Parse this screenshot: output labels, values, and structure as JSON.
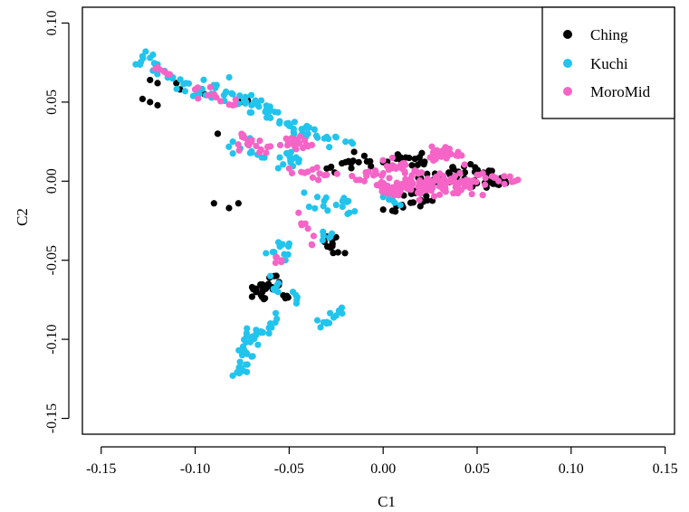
{
  "chart_data": {
    "type": "scatter",
    "xlabel": "C1",
    "ylabel": "C2",
    "xlim": [
      -0.16,
      0.155
    ],
    "ylim": [
      -0.16,
      0.11
    ],
    "x_ticks": [
      -0.15,
      -0.1,
      -0.05,
      0.0,
      0.05,
      0.1,
      0.15
    ],
    "x_tick_labels": [
      "-0.15",
      "-0.10",
      "-0.05",
      "0.00",
      "0.05",
      "0.10",
      "0.15"
    ],
    "y_ticks": [
      -0.15,
      -0.1,
      -0.05,
      0.0,
      0.05,
      0.1
    ],
    "y_tick_labels": [
      "-0.15",
      "-0.10",
      "-0.05",
      "0.00",
      "0.05",
      "0.10"
    ],
    "grid": false,
    "legend_position": "top-right",
    "series": [
      {
        "name": "Ching",
        "color": "#000000",
        "clusters": [
          {
            "x": [
              -0.128,
              -0.124,
              -0.12
            ],
            "y": [
              0.052,
              0.05,
              0.048
            ],
            "spread": 0.0015
          },
          {
            "x": [
              -0.124,
              -0.12,
              -0.11,
              -0.108
            ],
            "y": [
              0.064,
              0.062,
              0.062,
              0.058
            ],
            "spread": 0.002
          },
          {
            "x": [
              -0.095,
              -0.088,
              -0.076,
              -0.072
            ],
            "y": [
              0.055,
              0.03,
              0.05,
              0.051
            ],
            "spread": 0.0015
          },
          {
            "x": [
              -0.09,
              -0.082,
              -0.077
            ],
            "y": [
              -0.014,
              -0.017,
              -0.014
            ],
            "spread": 0.0008
          },
          {
            "x": [
              -0.068,
              -0.065,
              -0.061,
              -0.058
            ],
            "y": [
              -0.068,
              -0.072,
              -0.065,
              -0.06
            ],
            "spread": 0.004,
            "n": 20
          },
          {
            "x": [
              -0.052
            ],
            "y": [
              -0.074
            ],
            "spread": 0.002,
            "n": 3
          },
          {
            "x": [
              -0.03,
              -0.027,
              -0.024
            ],
            "y": [
              -0.035,
              -0.04,
              -0.045
            ],
            "spread": 0.003,
            "n": 10
          },
          {
            "x": [
              -0.03,
              -0.02,
              -0.01,
              0.0,
              0.012,
              0.02
            ],
            "y": [
              0.008,
              0.012,
              0.016,
              0.012,
              0.015,
              0.012
            ],
            "spread": 0.004,
            "n": 28
          },
          {
            "x": [
              0.0,
              0.01,
              0.02,
              0.015
            ],
            "y": [
              -0.018,
              -0.015,
              -0.012,
              -0.008
            ],
            "spread": 0.003,
            "n": 16
          },
          {
            "x": [
              0.02,
              0.03,
              0.04,
              0.05,
              0.055
            ],
            "y": [
              0.002,
              0.0,
              0.006,
              0.004,
              -0.004
            ],
            "spread": 0.004,
            "n": 40
          },
          {
            "x": [
              0.055,
              0.06,
              0.065
            ],
            "y": [
              0.0,
              -0.001,
              0.0
            ],
            "spread": 0.002,
            "n": 20
          }
        ]
      },
      {
        "name": "Kuchi",
        "color": "#21C4EC",
        "clusters": [
          {
            "x": [
              -0.128,
              -0.124,
              -0.12,
              -0.112,
              -0.105
            ],
            "y": [
              0.079,
              0.078,
              0.07,
              0.065,
              0.062
            ],
            "spread": 0.003,
            "n": 18
          },
          {
            "x": [
              -0.1,
              -0.09,
              -0.08,
              -0.07,
              -0.06
            ],
            "y": [
              0.058,
              0.055,
              0.055,
              0.048,
              0.045
            ],
            "spread": 0.004,
            "n": 40
          },
          {
            "x": [
              -0.06,
              -0.05,
              -0.04,
              -0.03,
              -0.02
            ],
            "y": [
              0.04,
              0.035,
              0.03,
              0.028,
              0.025
            ],
            "spread": 0.004,
            "n": 30
          },
          {
            "x": [
              -0.08,
              -0.07,
              -0.055,
              -0.045
            ],
            "y": [
              0.025,
              0.018,
              0.015,
              0.012
            ],
            "spread": 0.004,
            "n": 22
          },
          {
            "x": [
              -0.035,
              -0.025,
              -0.018
            ],
            "y": [
              -0.01,
              -0.015,
              -0.02
            ],
            "spread": 0.004,
            "n": 14
          },
          {
            "x": [
              -0.032,
              -0.028
            ],
            "y": [
              -0.032,
              -0.035
            ],
            "spread": 0.002,
            "n": 4
          },
          {
            "x": [
              -0.058,
              -0.055,
              -0.052
            ],
            "y": [
              -0.045,
              -0.04,
              -0.05
            ],
            "spread": 0.003,
            "n": 10
          },
          {
            "x": [
              -0.06,
              -0.056
            ],
            "y": [
              -0.06,
              -0.07
            ],
            "spread": 0.002,
            "n": 5
          },
          {
            "x": [
              -0.048,
              -0.046
            ],
            "y": [
              -0.07,
              -0.075
            ],
            "spread": 0.002,
            "n": 3
          },
          {
            "x": [
              -0.035,
              -0.03,
              -0.025,
              -0.022
            ],
            "y": [
              -0.088,
              -0.09,
              -0.085,
              -0.08
            ],
            "spread": 0.002,
            "n": 8
          },
          {
            "x": [
              -0.075,
              -0.07,
              -0.065,
              -0.06
            ],
            "y": [
              -0.11,
              -0.1,
              -0.095,
              -0.09
            ],
            "spread": 0.004,
            "n": 30
          },
          {
            "x": [
              -0.08,
              -0.077,
              -0.073
            ],
            "y": [
              -0.123,
              -0.12,
              -0.116
            ],
            "spread": 0.002,
            "n": 8
          },
          {
            "x": [
              0.0,
              0.005
            ],
            "y": [
              -0.01,
              -0.012
            ],
            "spread": 0.003,
            "n": 4
          }
        ]
      },
      {
        "name": "MoroMid",
        "color": "#F564C6",
        "clusters": [
          {
            "x": [
              -0.12,
              -0.115
            ],
            "y": [
              0.072,
              0.068
            ],
            "spread": 0.002,
            "n": 4
          },
          {
            "x": [
              -0.1,
              -0.09,
              -0.08
            ],
            "y": [
              0.058,
              0.055,
              0.048
            ],
            "spread": 0.003,
            "n": 10
          },
          {
            "x": [
              -0.075,
              -0.07,
              -0.065,
              -0.06
            ],
            "y": [
              0.028,
              0.025,
              0.02,
              0.022
            ],
            "spread": 0.003,
            "n": 16
          },
          {
            "x": [
              -0.05,
              -0.045,
              -0.04
            ],
            "y": [
              0.026,
              0.024,
              0.022
            ],
            "spread": 0.003,
            "n": 18
          },
          {
            "x": [
              -0.05,
              -0.04,
              -0.03
            ],
            "y": [
              0.008,
              0.006,
              0.004
            ],
            "spread": 0.003,
            "n": 10
          },
          {
            "x": [
              -0.045,
              -0.04,
              -0.038
            ],
            "y": [
              -0.02,
              -0.03,
              -0.04
            ],
            "spread": 0.003,
            "n": 5
          },
          {
            "x": [
              -0.057,
              -0.054
            ],
            "y": [
              -0.048,
              -0.05
            ],
            "spread": 0.002,
            "n": 3
          },
          {
            "x": [
              -0.01,
              0.0,
              0.005,
              0.01,
              0.015
            ],
            "y": [
              0.0,
              0.005,
              0.01,
              0.008,
              0.0
            ],
            "spread": 0.004,
            "n": 40
          },
          {
            "x": [
              0.0,
              0.015,
              0.03,
              0.045
            ],
            "y": [
              -0.005,
              -0.003,
              0.0,
              -0.002
            ],
            "spread": 0.005,
            "n": 110
          },
          {
            "x": [
              0.025,
              0.03,
              0.035,
              0.04
            ],
            "y": [
              0.015,
              0.018,
              0.02,
              0.016
            ],
            "spread": 0.003,
            "n": 30
          },
          {
            "x": [
              0.05,
              0.06,
              0.07
            ],
            "y": [
              0.004,
              0.002,
              0.0
            ],
            "spread": 0.002,
            "n": 10
          }
        ]
      }
    ]
  }
}
